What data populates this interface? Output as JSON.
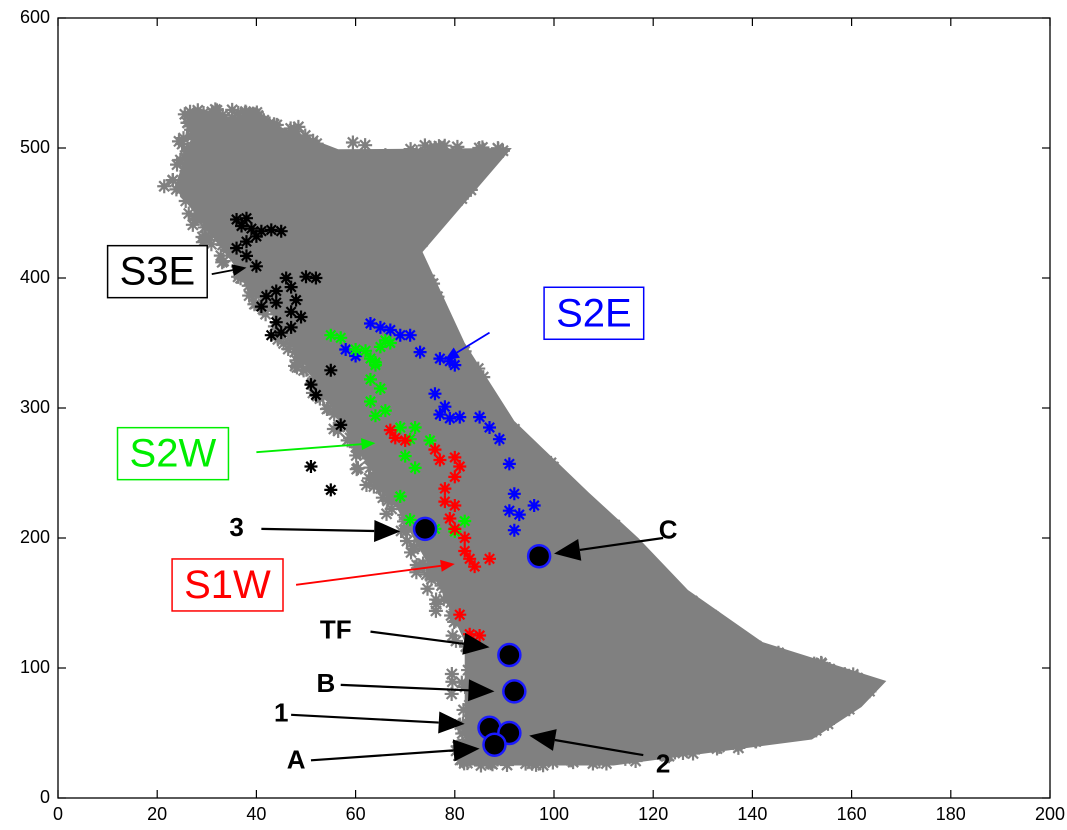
{
  "chart_data": {
    "type": "scatter",
    "title": "",
    "xlabel": "",
    "ylabel": "",
    "xlim": [
      0,
      200
    ],
    "ylim": [
      0,
      600
    ],
    "xticks": [
      0,
      20,
      40,
      60,
      80,
      100,
      120,
      140,
      160,
      180,
      200
    ],
    "yticks": [
      0,
      100,
      200,
      300,
      400,
      500,
      600
    ],
    "grid": false,
    "colors": {
      "background_cloud": "#808080",
      "S3E": "#000000",
      "S2E": "#0000ff",
      "S2W": "#00ee00",
      "S1W": "#ff0000",
      "highlight_fill": "#000000",
      "highlight_edge": "#1a1aff"
    },
    "background_cloud": {
      "marker": "asterisk",
      "envelope_left": [
        [
          27,
          530
        ],
        [
          22,
          470
        ],
        [
          32,
          420
        ],
        [
          42,
          370
        ],
        [
          50,
          320
        ],
        [
          58,
          270
        ],
        [
          66,
          225
        ],
        [
          74,
          170
        ],
        [
          80,
          120
        ],
        [
          80,
          60
        ],
        [
          80,
          25
        ]
      ],
      "envelope_right": [
        [
          38,
          530
        ],
        [
          55,
          505
        ],
        [
          90,
          500
        ],
        [
          72,
          420
        ],
        [
          80,
          350
        ],
        [
          90,
          290
        ],
        [
          105,
          235
        ],
        [
          115,
          200
        ],
        [
          125,
          160
        ],
        [
          140,
          120
        ],
        [
          165,
          90
        ],
        [
          160,
          70
        ],
        [
          150,
          45
        ],
        [
          110,
          25
        ]
      ]
    },
    "series": [
      {
        "name": "S3E",
        "marker": "asterisk",
        "points": [
          [
            36,
            445
          ],
          [
            38,
            446
          ],
          [
            37,
            440
          ],
          [
            39,
            438
          ],
          [
            41,
            436
          ],
          [
            43,
            437
          ],
          [
            45,
            436
          ],
          [
            40,
            432
          ],
          [
            38,
            428
          ],
          [
            36,
            423
          ],
          [
            38,
            417
          ],
          [
            40,
            409
          ],
          [
            46,
            400
          ],
          [
            50,
            401
          ],
          [
            52,
            400
          ],
          [
            47,
            393
          ],
          [
            44,
            390
          ],
          [
            42,
            386
          ],
          [
            48,
            383
          ],
          [
            44,
            381
          ],
          [
            41,
            378
          ],
          [
            47,
            374
          ],
          [
            49,
            370
          ],
          [
            44,
            366
          ],
          [
            47,
            362
          ],
          [
            45,
            358
          ],
          [
            43,
            356
          ],
          [
            51,
            318
          ],
          [
            52,
            310
          ],
          [
            55,
            329
          ],
          [
            57,
            287
          ],
          [
            51,
            255
          ],
          [
            55,
            237
          ]
        ]
      },
      {
        "name": "S2E",
        "marker": "asterisk",
        "points": [
          [
            58,
            345
          ],
          [
            60,
            340
          ],
          [
            63,
            365
          ],
          [
            65,
            362
          ],
          [
            67,
            360
          ],
          [
            69,
            356
          ],
          [
            71,
            356
          ],
          [
            73,
            343
          ],
          [
            77,
            338
          ],
          [
            79,
            336
          ],
          [
            80,
            333
          ],
          [
            76,
            311
          ],
          [
            78,
            301
          ],
          [
            77,
            295
          ],
          [
            79,
            292
          ],
          [
            81,
            293
          ],
          [
            85,
            293
          ],
          [
            87,
            285
          ],
          [
            89,
            276
          ],
          [
            91,
            257
          ],
          [
            92,
            234
          ],
          [
            91,
            221
          ],
          [
            93,
            218
          ],
          [
            92,
            206
          ],
          [
            96,
            225
          ]
        ]
      },
      {
        "name": "S2W",
        "marker": "asterisk",
        "points": [
          [
            55,
            356
          ],
          [
            57,
            354
          ],
          [
            60,
            345
          ],
          [
            62,
            344
          ],
          [
            63,
            338
          ],
          [
            64,
            335
          ],
          [
            65,
            347
          ],
          [
            66,
            352
          ],
          [
            67,
            350
          ],
          [
            64,
            333
          ],
          [
            63,
            322
          ],
          [
            65,
            315
          ],
          [
            63,
            305
          ],
          [
            64,
            294
          ],
          [
            66,
            298
          ],
          [
            69,
            285
          ],
          [
            72,
            285
          ],
          [
            71,
            276
          ],
          [
            75,
            275
          ],
          [
            70,
            263
          ],
          [
            72,
            254
          ],
          [
            69,
            232
          ],
          [
            71,
            214
          ],
          [
            74,
            210
          ],
          [
            76,
            207
          ],
          [
            80,
            205
          ],
          [
            82,
            213
          ]
        ]
      },
      {
        "name": "S1W",
        "marker": "asterisk",
        "points": [
          [
            67,
            283
          ],
          [
            68,
            277
          ],
          [
            70,
            275
          ],
          [
            76,
            268
          ],
          [
            77,
            260
          ],
          [
            80,
            262
          ],
          [
            81,
            255
          ],
          [
            80,
            247
          ],
          [
            78,
            238
          ],
          [
            78,
            228
          ],
          [
            80,
            225
          ],
          [
            79,
            215
          ],
          [
            80,
            207
          ],
          [
            82,
            200
          ],
          [
            82,
            190
          ],
          [
            83,
            184
          ],
          [
            84,
            178
          ],
          [
            87,
            184
          ],
          [
            81,
            141
          ],
          [
            83,
            126
          ],
          [
            85,
            125
          ]
        ]
      }
    ],
    "highlight_points": [
      {
        "label": "3",
        "x": 74,
        "y": 207
      },
      {
        "label": "C",
        "x": 97,
        "y": 186
      },
      {
        "label": "TF",
        "x": 91,
        "y": 110
      },
      {
        "label": "B",
        "x": 92,
        "y": 82
      },
      {
        "label": "1",
        "x": 87,
        "y": 54
      },
      {
        "label": "2",
        "x": 91,
        "y": 50
      },
      {
        "label": "A",
        "x": 88,
        "y": 41
      }
    ],
    "annotations": [
      {
        "text": "S3E",
        "boxed": true,
        "color": "#000000",
        "text_x": 10,
        "text_y": 403,
        "arrow_from": [
          31,
          403
        ],
        "arrow_to": [
          38,
          408
        ]
      },
      {
        "text": "S2E",
        "boxed": true,
        "color": "#0000ff",
        "text_x": 98,
        "text_y": 371,
        "arrow_from": [
          87,
          358
        ],
        "arrow_to": [
          78,
          337
        ]
      },
      {
        "text": "S2W",
        "boxed": true,
        "color": "#00ee00",
        "text_x": 12,
        "text_y": 263,
        "arrow_from": [
          40,
          266
        ],
        "arrow_to": [
          64,
          273
        ]
      },
      {
        "text": "S1W",
        "boxed": true,
        "color": "#ff0000",
        "text_x": 23,
        "text_y": 162,
        "arrow_from": [
          48,
          164
        ],
        "arrow_to": [
          80,
          180
        ]
      },
      {
        "text": "3",
        "boxed": false,
        "color": "#000000",
        "text_x": 36,
        "text_y": 207,
        "arrow_from": [
          41,
          207
        ],
        "arrow_to": [
          69,
          205
        ]
      },
      {
        "text": "C",
        "boxed": false,
        "color": "#000000",
        "text_x": 123,
        "text_y": 205,
        "arrow_from": [
          122,
          200
        ],
        "arrow_to": [
          100,
          188
        ]
      },
      {
        "text": "TF",
        "boxed": false,
        "color": "#000000",
        "text_x": 56,
        "text_y": 128,
        "arrow_from": [
          63,
          128
        ],
        "arrow_to": [
          87,
          116
        ]
      },
      {
        "text": "B",
        "boxed": false,
        "color": "#000000",
        "text_x": 54,
        "text_y": 87,
        "arrow_from": [
          57,
          87
        ],
        "arrow_to": [
          88,
          82
        ]
      },
      {
        "text": "1",
        "boxed": false,
        "color": "#000000",
        "text_x": 45,
        "text_y": 64,
        "arrow_from": [
          47,
          64
        ],
        "arrow_to": [
          82,
          57
        ]
      },
      {
        "text": "2",
        "boxed": false,
        "color": "#000000",
        "text_x": 122,
        "text_y": 25,
        "arrow_from": [
          118,
          33
        ],
        "arrow_to": [
          95,
          48
        ]
      },
      {
        "text": "A",
        "boxed": false,
        "color": "#000000",
        "text_x": 48,
        "text_y": 28,
        "arrow_from": [
          51,
          29
        ],
        "arrow_to": [
          85,
          38
        ]
      }
    ]
  }
}
